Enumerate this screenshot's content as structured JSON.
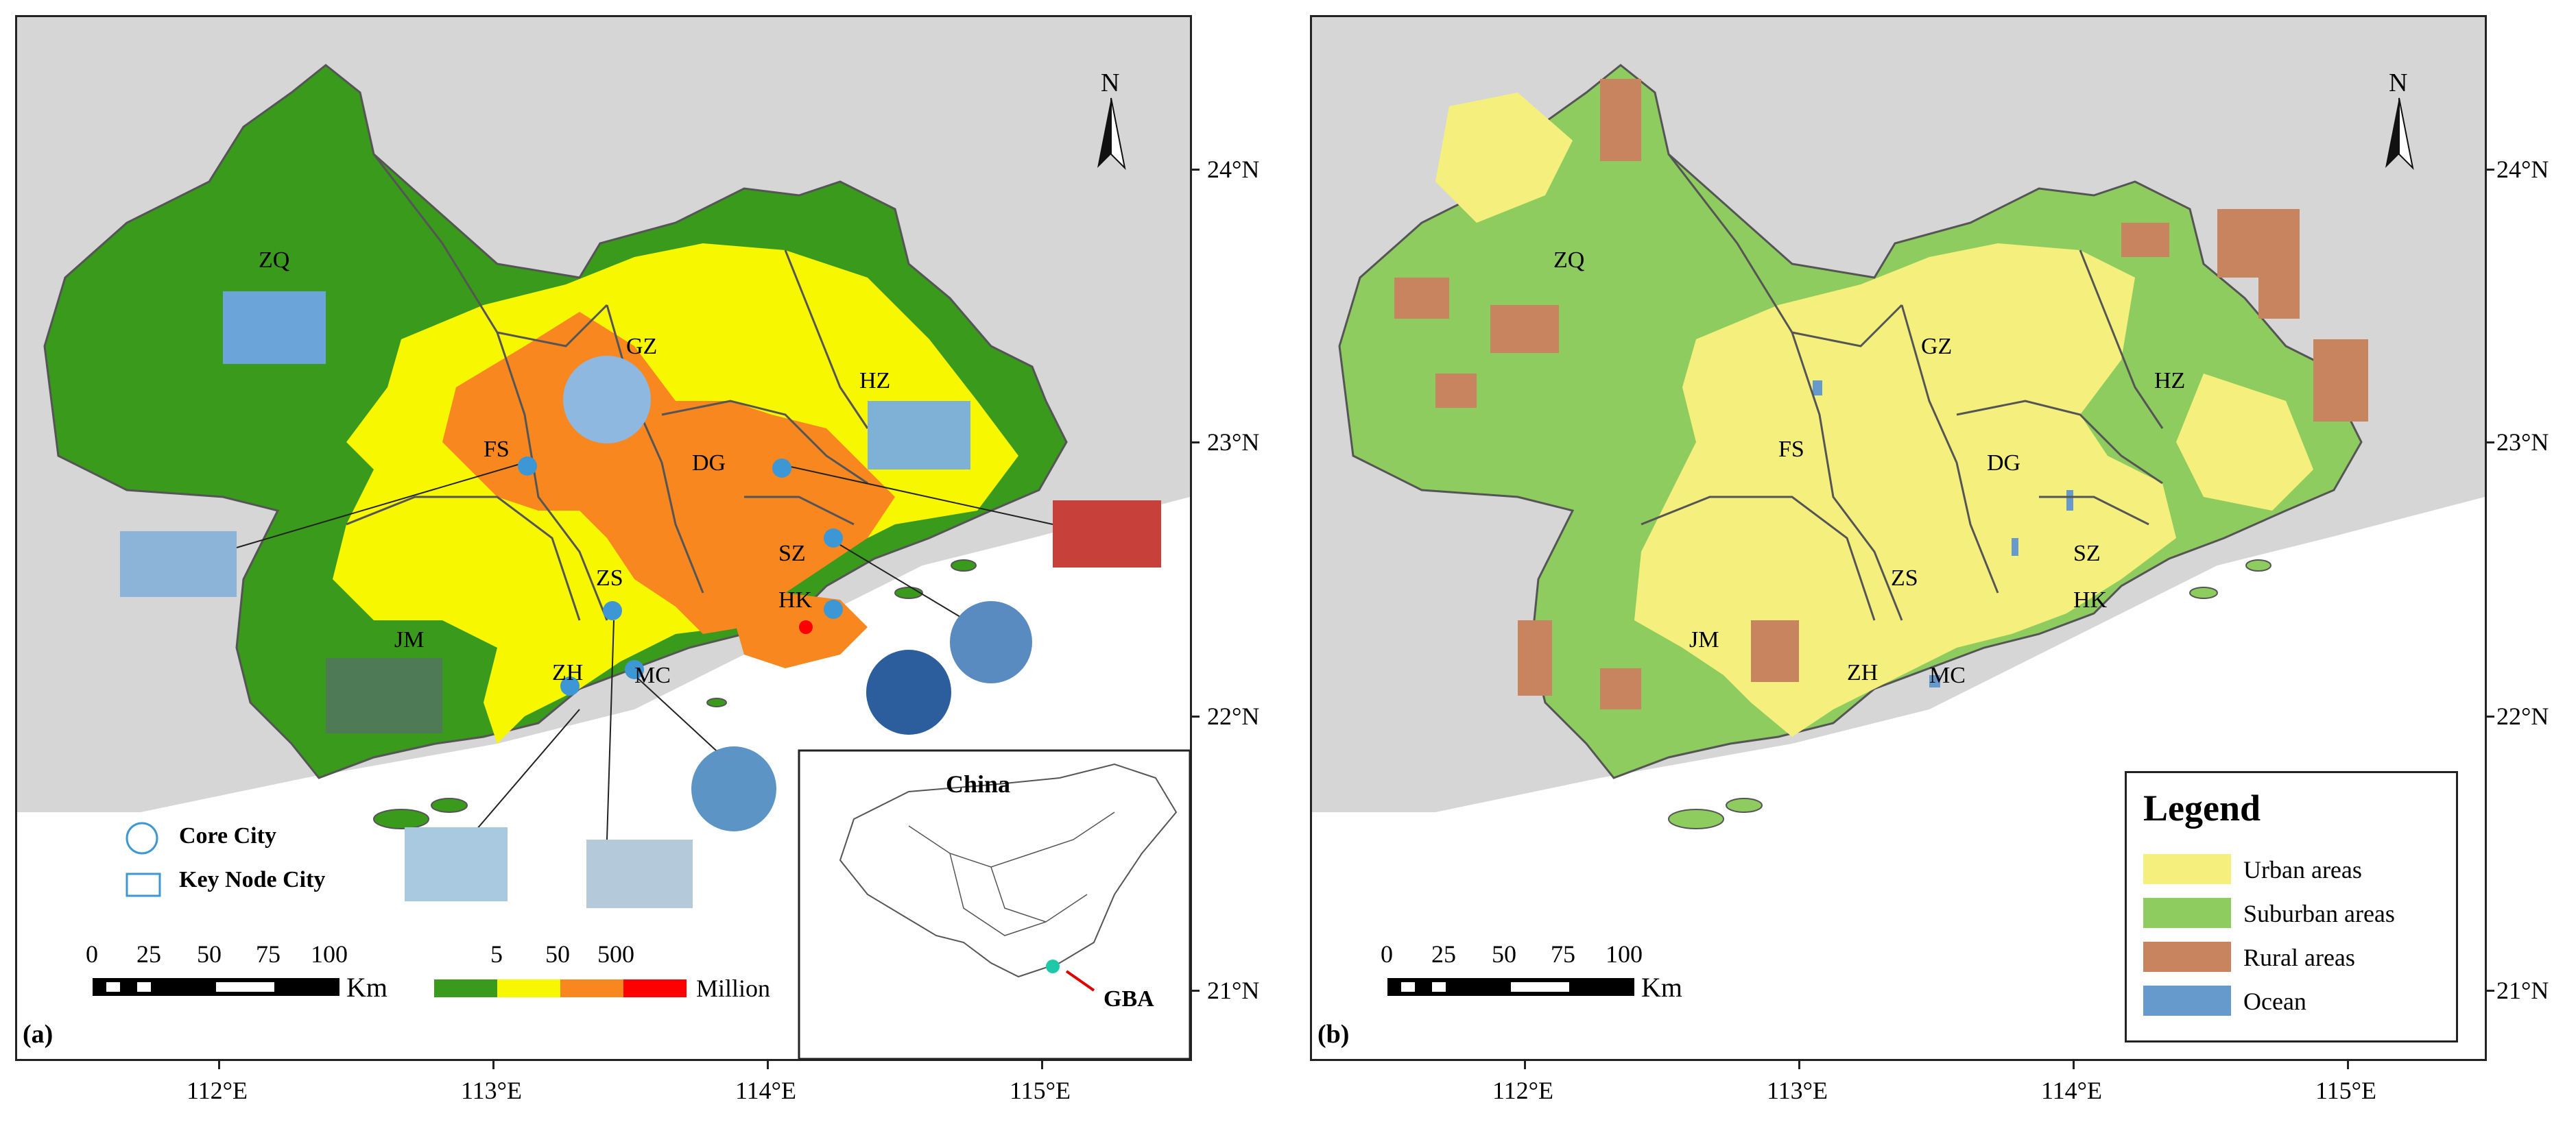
{
  "panel_a": {
    "label": "(a)",
    "cities": {
      "zq": "ZQ",
      "gz": "GZ",
      "hz": "HZ",
      "fs": "FS",
      "dg": "DG",
      "sz": "SZ",
      "zs": "ZS",
      "hk": "HK",
      "jm": "JM",
      "zh": "ZH",
      "mc": "MC"
    },
    "north": "N",
    "legend_core": "Core City",
    "legend_node": "Key Node City",
    "scale_numbers": [
      "0",
      "25",
      "50",
      "75",
      "100"
    ],
    "scale_unit": "Km",
    "population_ticks": [
      "5",
      "50",
      "500"
    ],
    "population_unit": "Million",
    "population_colors": [
      "#3a9a1c",
      "#f7f700",
      "#f7871e",
      "#ff0000"
    ],
    "inset_title": "China",
    "inset_label": "GBA"
  },
  "panel_b": {
    "label": "(b)",
    "cities": {
      "zq": "ZQ",
      "gz": "GZ",
      "hz": "HZ",
      "fs": "FS",
      "dg": "DG",
      "sz": "SZ",
      "zs": "ZS",
      "hk": "HK",
      "jm": "JM",
      "zh": "ZH",
      "mc": "MC"
    },
    "north": "N",
    "scale_numbers": [
      "0",
      "25",
      "50",
      "75",
      "100"
    ],
    "scale_unit": "Km",
    "legend_title": "Legend",
    "legend_items": [
      {
        "label": "Urban areas",
        "color": "#f5f07e"
      },
      {
        "label": "Suburban areas",
        "color": "#8fcc5f"
      },
      {
        "label": "Rural areas",
        "color": "#c8835f"
      },
      {
        "label": "Ocean",
        "color": "#6699cc"
      }
    ]
  },
  "lat_labels": [
    "24°N",
    "23°N",
    "22°N",
    "21°N"
  ],
  "lon_labels": [
    "112°E",
    "113°E",
    "114°E",
    "115°E"
  ],
  "colors": {
    "land_outside": "#d6d6d6",
    "green": "#3a9a1c",
    "yellow": "#f7f700",
    "orange": "#f7871e",
    "red": "#ff0000",
    "border": "#555555"
  }
}
